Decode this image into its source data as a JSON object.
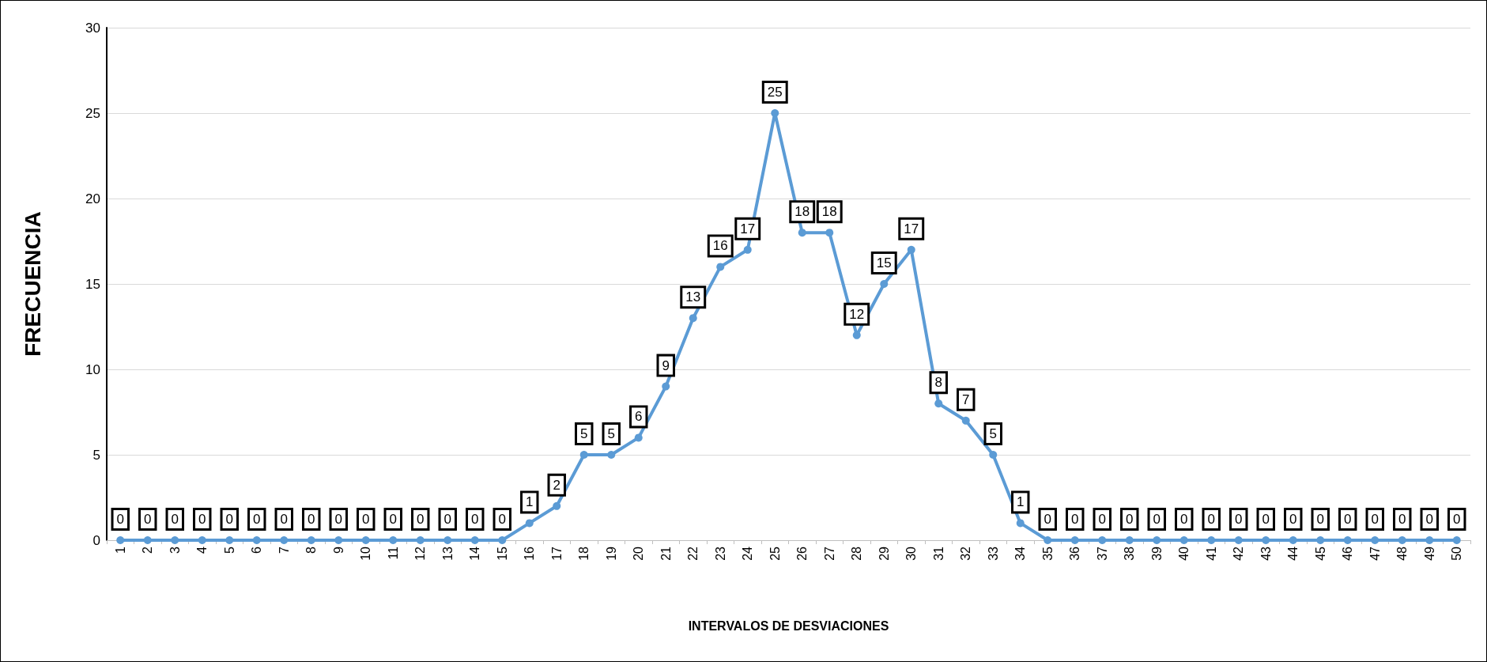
{
  "chart_data": {
    "type": "line",
    "xlabel": "INTERVALOS DE DESVIACIONES",
    "ylabel": "FRECUENCIA",
    "categories": [
      "1",
      "2",
      "3",
      "4",
      "5",
      "6",
      "7",
      "8",
      "9",
      "10",
      "11",
      "12",
      "13",
      "14",
      "15",
      "16",
      "17",
      "18",
      "19",
      "20",
      "21",
      "22",
      "23",
      "24",
      "25",
      "26",
      "27",
      "28",
      "29",
      "30",
      "31",
      "32",
      "33",
      "34",
      "35",
      "36",
      "37",
      "38",
      "39",
      "40",
      "41",
      "42",
      "43",
      "44",
      "45",
      "46",
      "47",
      "48",
      "49",
      "50"
    ],
    "values": [
      0,
      0,
      0,
      0,
      0,
      0,
      0,
      0,
      0,
      0,
      0,
      0,
      0,
      0,
      0,
      1,
      2,
      5,
      5,
      6,
      9,
      13,
      16,
      17,
      25,
      18,
      18,
      12,
      15,
      17,
      8,
      7,
      5,
      1,
      0,
      0,
      0,
      0,
      0,
      0,
      0,
      0,
      0,
      0,
      0,
      0,
      0,
      0,
      0,
      0
    ],
    "color": "#5b9bd5",
    "ylim": [
      0,
      30
    ],
    "yticks": [
      0,
      5,
      10,
      15,
      20,
      25,
      30
    ],
    "grid": "y",
    "marker": "circle",
    "line_style": "solid",
    "data_labels": true
  }
}
